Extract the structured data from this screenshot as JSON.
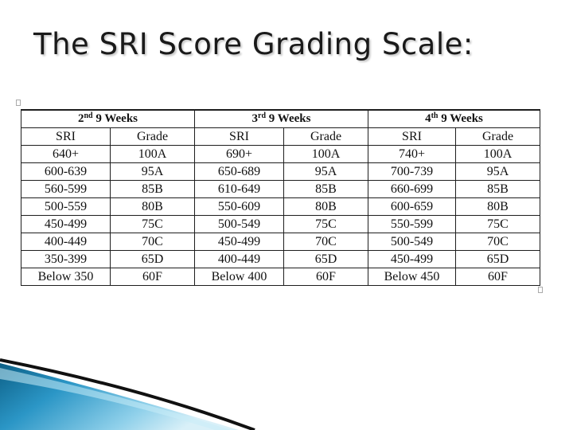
{
  "slide": {
    "title": "The SRI Score Grading Scale:"
  },
  "table": {
    "periods": [
      {
        "num": "2",
        "sup": "nd",
        "label": " 9 Weeks"
      },
      {
        "num": "3",
        "sup": "rd",
        "label": " 9 Weeks"
      },
      {
        "num": "4",
        "sup": "th",
        "label": " 9 Weeks"
      }
    ],
    "headers": [
      "SRI",
      "Grade",
      "SRI",
      "Grade",
      "SRI",
      "Grade"
    ],
    "rows": [
      [
        "640+",
        "100A",
        "690+",
        "100A",
        "740+",
        "100A"
      ],
      [
        "600-639",
        "95A",
        "650-689",
        "95A",
        "700-739",
        "95A"
      ],
      [
        "560-599",
        "85B",
        "610-649",
        "85B",
        "660-699",
        "85B"
      ],
      [
        "500-559",
        "80B",
        "550-609",
        "80B",
        "600-659",
        "80B"
      ],
      [
        "450-499",
        "75C",
        "500-549",
        "75C",
        "550-599",
        "75C"
      ],
      [
        "400-449",
        "70C",
        "450-499",
        "70C",
        "500-549",
        "70C"
      ],
      [
        "350-399",
        "65D",
        "400-449",
        "65D",
        "450-499",
        "65D"
      ],
      [
        "Below 350",
        "60F",
        "Below 400",
        "60F",
        "Below 450",
        "60F"
      ]
    ]
  },
  "colors": {
    "accent_dark": "#0c5f86",
    "accent_light": "#8fd0ea",
    "stroke": "#111111"
  }
}
